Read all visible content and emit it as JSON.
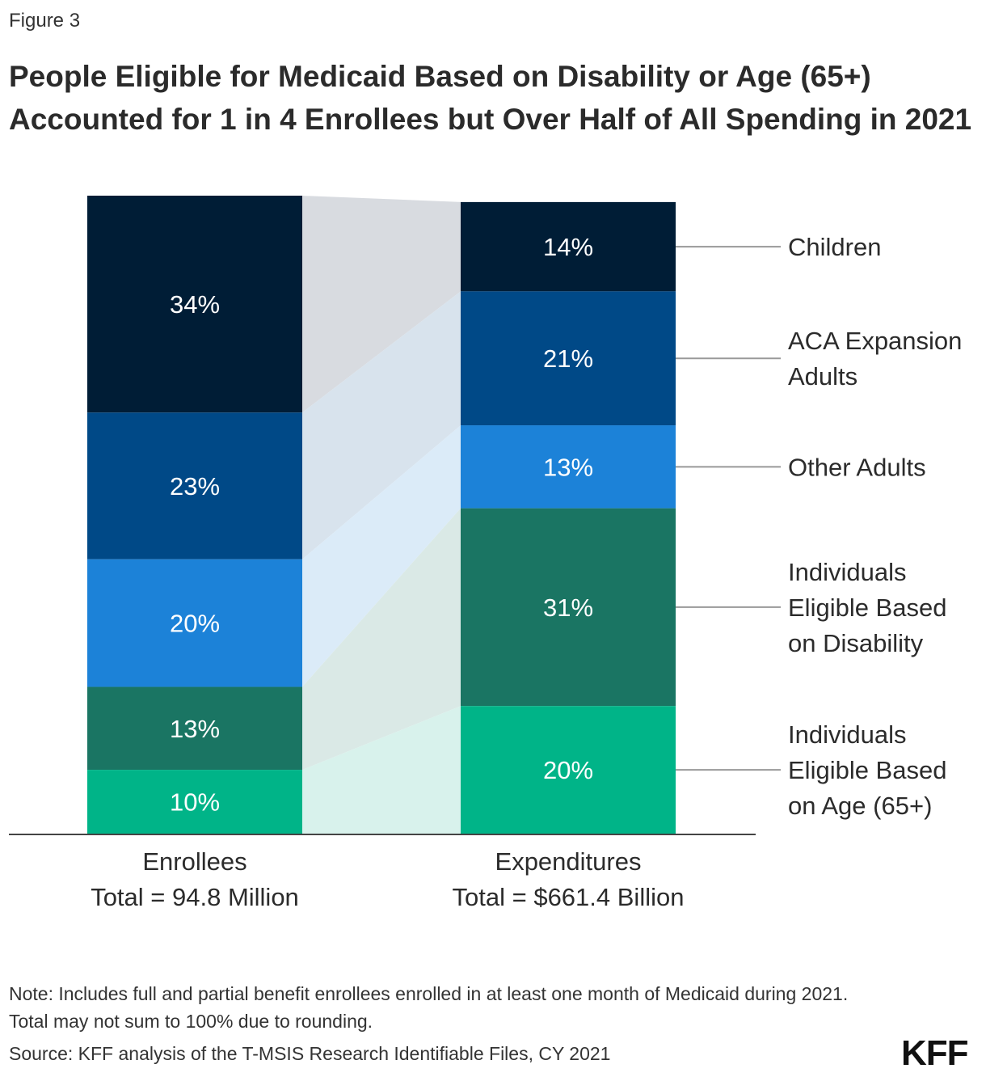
{
  "figure_label": "Figure 3",
  "title": "People Eligible for Medicaid Based on Disability or Age (65+) Accounted for 1 in 4 Enrollees but Over Half of All Spending in 2021",
  "note": "Note: Includes full and partial benefit enrollees enrolled in at least one month of Medicaid during 2021. Total may not sum to 100% due to rounding.",
  "source": "Source: KFF analysis of the T-MSIS Research Identifiable Files, CY 2021",
  "logo": "KFF",
  "chart_data": {
    "type": "bar",
    "stacked": true,
    "unit": "%",
    "categories": [
      {
        "name": "Enrollees",
        "total": "Total = 94.8 Million"
      },
      {
        "name": "Expenditures",
        "total": "Total = $661.4 Billion"
      }
    ],
    "series": [
      {
        "name": "Children",
        "values": [
          34,
          14
        ],
        "color": "#001d36",
        "connector_color": "#d8dbe0"
      },
      {
        "name": "ACA Expansion Adults",
        "values": [
          23,
          21
        ],
        "color": "#004987",
        "connector_color": "#d8e3ed"
      },
      {
        "name": "Other Adults",
        "values": [
          20,
          13
        ],
        "color": "#1c82d8",
        "connector_color": "#dbebf8"
      },
      {
        "name": "Individuals Eligible Based on Disability",
        "values": [
          13,
          31
        ],
        "color": "#1a7563",
        "connector_color": "#dae9e6"
      },
      {
        "name": "Individuals Eligible Based on Age (65+)",
        "values": [
          10,
          20
        ],
        "color": "#00b488",
        "connector_color": "#d8f2ec"
      }
    ],
    "legend_lines": [
      [
        "Children"
      ],
      [
        "ACA Expansion",
        "Adults"
      ],
      [
        "Other Adults"
      ],
      [
        "Individuals",
        "Eligible Based",
        "on Disability"
      ],
      [
        "Individuals",
        "Eligible Based",
        "on Age (65+)"
      ]
    ],
    "legend_placement": "right",
    "ylim": [
      0,
      100
    ]
  }
}
